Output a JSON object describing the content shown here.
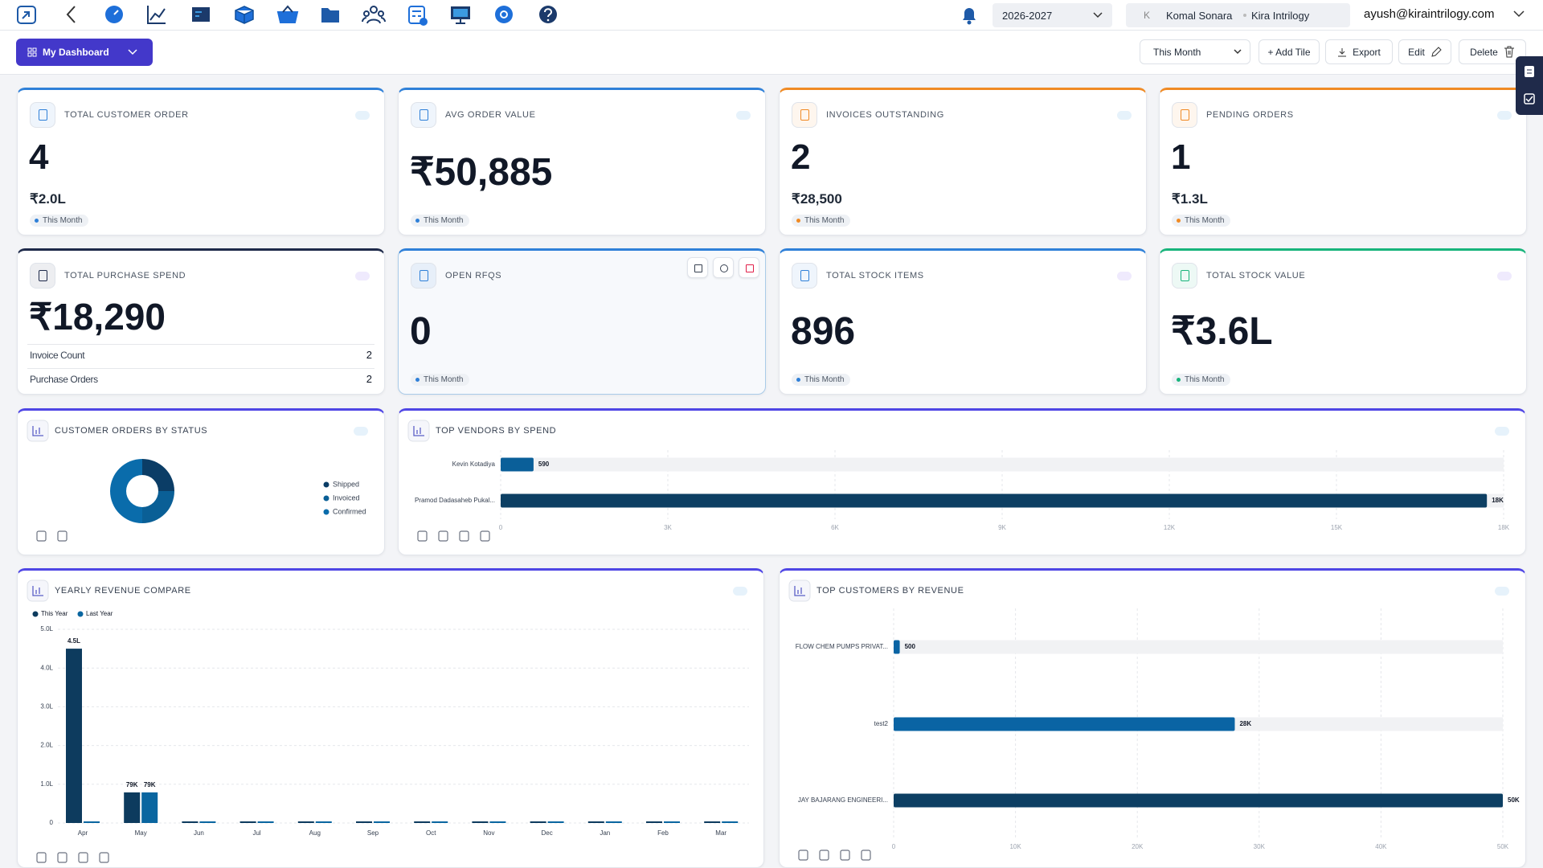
{
  "header": {
    "financial_year": "2026-2027",
    "avatar": "K",
    "user": "Komal Sonara",
    "company": "Kira Intrilogy",
    "email": "ayush@kiraintrilogy.com"
  },
  "toolbar": {
    "dashboard": "My Dashboard",
    "period": "This Month",
    "add_tile": "+ Add Tile",
    "export": "Export",
    "edit": "Edit",
    "delete": "Delete"
  },
  "tiles": [
    {
      "title": "TOTAL CUSTOMER ORDER",
      "value": "4",
      "amount": "₹2.0L",
      "period": "This Month",
      "accent": "#2f80d8"
    },
    {
      "title": "AVG ORDER VALUE",
      "value": "₹50,885",
      "period": "This Month",
      "accent": "#2f80d8"
    },
    {
      "title": "INVOICES OUTSTANDING",
      "value": "2",
      "amount": "₹28,500",
      "period": "This Month",
      "accent": "#f08a24"
    },
    {
      "title": "PENDING ORDERS",
      "value": "1",
      "amount": "₹1.3L",
      "period": "This Month",
      "accent": "#f08a24"
    },
    {
      "title": "TOTAL PURCHASE SPEND",
      "value": "₹18,290",
      "rows": [
        [
          "Invoice Count",
          "2"
        ],
        [
          "Purchase Orders",
          "2"
        ]
      ],
      "accent": "#1e2a4a"
    },
    {
      "title": "OPEN RFQS",
      "value": "0",
      "period": "This Month",
      "accent": "#2f80d8"
    },
    {
      "title": "TOTAL STOCK ITEMS",
      "value": "896",
      "period": "This Month",
      "accent": "#2f80d8"
    },
    {
      "title": "TOTAL STOCK VALUE",
      "value": "₹3.6L",
      "period": "This Month",
      "accent": "#18b47b"
    }
  ],
  "chart_data": [
    {
      "type": "pie",
      "title": "CUSTOMER ORDERS BY STATUS",
      "donut": true,
      "categories": [
        "Shipped",
        "Invoiced",
        "Confirmed"
      ],
      "values": [
        1,
        1,
        2
      ],
      "colors": [
        "#0b3d66",
        "#0a5f96",
        "#0a6cab"
      ]
    },
    {
      "type": "hbar",
      "title": "TOP VENDORS BY SPEND",
      "categories": [
        "Kevin Kotadiya",
        "Pramod Dadasaheb Pukal..."
      ],
      "values": [
        590,
        17700
      ],
      "value_labels": [
        "590",
        "18K"
      ],
      "colors": [
        "#0a5f99",
        "#0d3f63"
      ],
      "xlim": [
        0,
        18000
      ],
      "xticks": [
        0,
        {
          "value": 3000,
          "label": "3K"
        },
        {
          "value": 6000,
          "label": "6K"
        },
        {
          "value": 9000,
          "label": "9K"
        },
        {
          "value": 12000,
          "label": "12K"
        },
        {
          "value": 15000,
          "label": "15K"
        },
        {
          "value": 18000,
          "label": "18K"
        }
      ],
      "grid": true
    },
    {
      "type": "bar",
      "title": "YEARLY REVENUE COMPARE",
      "categories": [
        "Apr",
        "May",
        "Jun",
        "Jul",
        "Aug",
        "Sep",
        "Oct",
        "Nov",
        "Dec",
        "Jan",
        "Feb",
        "Mar"
      ],
      "series": [
        {
          "name": "This Year",
          "color": "#0d3b5e",
          "values": [
            450000,
            79000,
            0,
            0,
            0,
            0,
            0,
            0,
            0,
            0,
            0,
            0
          ],
          "value_labels": [
            "4.5L",
            "79K",
            null,
            null,
            null,
            null,
            null,
            null,
            null,
            null,
            null,
            null
          ]
        },
        {
          "name": "Last Year",
          "color": "#0a66a0",
          "values": [
            0,
            79000,
            0,
            0,
            0,
            0,
            0,
            0,
            0,
            0,
            0,
            0
          ],
          "value_labels": [
            null,
            "79K",
            null,
            null,
            null,
            null,
            null,
            null,
            null,
            null,
            null,
            null
          ]
        }
      ],
      "ylim": [
        0,
        500000
      ],
      "yticks": [
        0,
        {
          "value": 100000,
          "label": "1.0L"
        },
        {
          "value": 200000,
          "label": "2.0L"
        },
        {
          "value": 300000,
          "label": "3.0L"
        },
        {
          "value": 400000,
          "label": "4.0L"
        },
        {
          "value": 500000,
          "label": "5.0L"
        }
      ],
      "grid": true
    },
    {
      "type": "hbar",
      "title": "TOP CUSTOMERS BY REVENUE",
      "categories": [
        "FLOW CHEM PUMPS PRIVAT...",
        "test2",
        "JAY BAJARANG ENGINEERI..."
      ],
      "values": [
        500,
        28000,
        50000
      ],
      "value_labels": [
        "500",
        "28K",
        "50K"
      ],
      "colors": [
        "#0a64a4",
        "#0a64a4",
        "#0d3f63"
      ],
      "xlim": [
        0,
        50000
      ],
      "xticks": [
        0,
        {
          "value": 10000,
          "label": "10K"
        },
        {
          "value": 20000,
          "label": "20K"
        },
        {
          "value": 30000,
          "label": "30K"
        },
        {
          "value": 40000,
          "label": "40K"
        },
        {
          "value": 50000,
          "label": "50K"
        }
      ],
      "grid": true
    }
  ]
}
